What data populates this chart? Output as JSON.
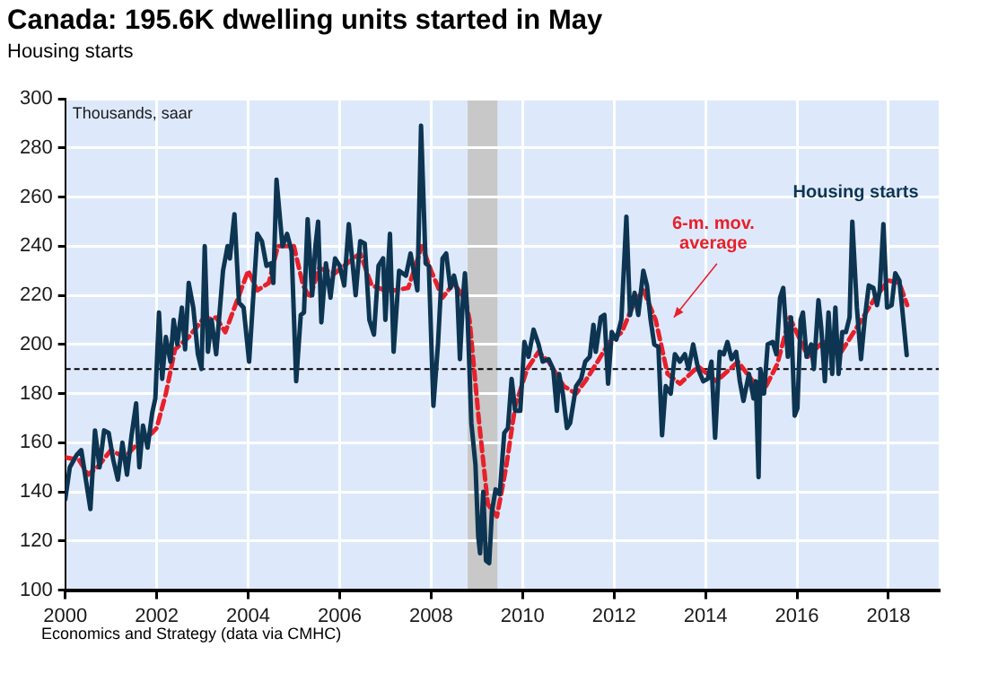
{
  "chart_data": {
    "type": "line",
    "title": "Canada: 195.6K dwelling units started in May",
    "subtitle": "Housing starts",
    "ylabel": "Thousands, saar",
    "annotations": [
      "Economics and Strategy (data via CMHC)"
    ],
    "xlim": [
      2000,
      2019.1
    ],
    "xticks": [
      2000,
      2002,
      2004,
      2006,
      2008,
      2010,
      2012,
      2014,
      2016,
      2018
    ],
    "ylim": [
      100,
      300
    ],
    "yticks": [
      100,
      120,
      140,
      160,
      180,
      200,
      220,
      240,
      260,
      280,
      300
    ],
    "grid": true,
    "legend": false,
    "marker": "none",
    "ref_lines": [
      {
        "axis": "y",
        "value": 190,
        "color": "#000000",
        "line_style": "dashed"
      }
    ],
    "bands": [
      {
        "axis": "x",
        "from": 2008.8,
        "to": 2009.45,
        "color": "#c8c8c8"
      }
    ],
    "series": [
      {
        "name": "Housing starts",
        "color": "#0d3552",
        "line_style": "solid",
        "x": [
          2000.0,
          2000.1,
          2000.25,
          2000.35,
          2000.45,
          2000.55,
          2000.65,
          2000.75,
          2000.85,
          2000.95,
          2001.05,
          2001.15,
          2001.25,
          2001.35,
          2001.45,
          2001.55,
          2001.62,
          2001.7,
          2001.8,
          2001.9,
          2001.97,
          2002.05,
          2002.12,
          2002.2,
          2002.3,
          2002.37,
          2002.45,
          2002.55,
          2002.62,
          2002.7,
          2002.8,
          2002.9,
          2002.98,
          2003.05,
          2003.12,
          2003.2,
          2003.3,
          2003.45,
          2003.55,
          2003.6,
          2003.7,
          2003.8,
          2003.9,
          2004.02,
          2004.2,
          2004.3,
          2004.4,
          2004.5,
          2004.55,
          2004.62,
          2004.75,
          2004.85,
          2004.95,
          2005.05,
          2005.15,
          2005.22,
          2005.3,
          2005.4,
          2005.47,
          2005.53,
          2005.6,
          2005.7,
          2005.8,
          2005.9,
          2006.0,
          2006.1,
          2006.2,
          2006.35,
          2006.45,
          2006.55,
          2006.65,
          2006.75,
          2006.85,
          2006.95,
          2007.0,
          2007.1,
          2007.18,
          2007.3,
          2007.45,
          2007.55,
          2007.62,
          2007.7,
          2007.78,
          2007.88,
          2007.95,
          2008.05,
          2008.15,
          2008.25,
          2008.33,
          2008.42,
          2008.5,
          2008.57,
          2008.63,
          2008.7,
          2008.74,
          2008.8,
          2008.88,
          2008.97,
          2009.03,
          2009.07,
          2009.14,
          2009.2,
          2009.27,
          2009.33,
          2009.41,
          2009.5,
          2009.6,
          2009.68,
          2009.76,
          2009.84,
          2009.95,
          2010.04,
          2010.13,
          2010.24,
          2010.35,
          2010.44,
          2010.57,
          2010.67,
          2010.75,
          2010.8,
          2010.88,
          2010.97,
          2011.04,
          2011.17,
          2011.28,
          2011.37,
          2011.47,
          2011.55,
          2011.6,
          2011.71,
          2011.79,
          2011.87,
          2011.95,
          2012.05,
          2012.16,
          2012.27,
          2012.35,
          2012.45,
          2012.53,
          2012.64,
          2012.72,
          2012.8,
          2012.88,
          2012.97,
          2013.05,
          2013.13,
          2013.24,
          2013.33,
          2013.44,
          2013.55,
          2013.63,
          2013.73,
          2013.84,
          2013.95,
          2014.05,
          2014.13,
          2014.21,
          2014.31,
          2014.4,
          2014.48,
          2014.57,
          2014.67,
          2014.75,
          2014.83,
          2014.95,
          2015.05,
          2015.1,
          2015.16,
          2015.2,
          2015.28,
          2015.36,
          2015.47,
          2015.55,
          2015.63,
          2015.7,
          2015.8,
          2015.87,
          2015.95,
          2016.01,
          2016.08,
          2016.13,
          2016.21,
          2016.31,
          2016.37,
          2016.47,
          2016.53,
          2016.61,
          2016.69,
          2016.77,
          2016.84,
          2016.91,
          2016.99,
          2017.07,
          2017.15,
          2017.21,
          2017.31,
          2017.4,
          2017.48,
          2017.57,
          2017.67,
          2017.75,
          2017.81,
          2017.89,
          2017.97,
          2018.07,
          2018.15,
          2018.24,
          2018.32,
          2018.4
        ],
        "values": [
          137,
          150,
          155,
          157,
          145,
          133,
          165,
          150,
          165,
          164,
          153,
          145,
          160,
          147,
          163,
          176,
          150,
          167,
          158,
          172,
          178,
          213,
          186,
          203,
          193,
          210,
          200,
          215,
          198,
          225,
          215,
          196,
          190,
          240,
          197,
          210,
          196,
          230,
          240,
          235,
          253,
          217,
          215,
          193,
          245,
          242,
          232,
          233,
          225,
          267,
          240,
          245,
          238,
          185,
          212,
          213,
          251,
          220,
          240,
          250,
          209,
          233,
          219,
          235,
          232,
          224,
          249,
          220,
          242,
          241,
          210,
          204,
          232,
          235,
          210,
          245,
          197,
          230,
          228,
          237,
          230,
          222,
          289,
          233,
          232,
          175,
          200,
          235,
          237,
          223,
          228,
          222,
          194,
          220,
          229,
          210,
          168,
          151,
          122,
          115,
          140,
          112,
          111,
          132,
          141,
          139,
          164,
          166,
          186,
          173,
          173,
          201,
          195,
          206,
          200,
          193,
          194,
          190,
          173,
          188,
          180,
          166,
          168,
          183,
          186,
          193,
          195,
          208,
          197,
          211,
          212,
          184,
          205,
          202,
          210,
          252,
          212,
          221,
          212,
          230,
          224,
          210,
          200,
          199,
          163,
          183,
          180,
          196,
          193,
          196,
          190,
          200,
          190,
          185,
          186,
          193,
          162,
          197,
          196,
          201,
          194,
          197,
          185,
          177,
          188,
          178,
          185,
          146,
          190,
          180,
          200,
          201,
          196,
          219,
          223,
          195,
          211,
          171,
          174,
          210,
          213,
          195,
          200,
          190,
          218,
          207,
          185,
          213,
          188,
          215,
          188,
          205,
          205,
          211,
          250,
          215,
          194,
          210,
          224,
          223,
          216,
          222,
          249,
          215,
          216,
          229,
          226,
          211,
          195.6
        ]
      },
      {
        "name": "6-m. mov. average",
        "color": "#e8202a",
        "line_style": "dashed",
        "x": [
          2000.0,
          2000.3,
          2000.5,
          2000.7,
          2001.0,
          2001.3,
          2001.6,
          2001.9,
          2002.0,
          2002.2,
          2002.4,
          2002.7,
          2003.0,
          2003.3,
          2003.5,
          2003.8,
          2004.0,
          2004.2,
          2004.45,
          2004.65,
          2005.0,
          2005.2,
          2005.35,
          2005.55,
          2005.9,
          2006.1,
          2006.3,
          2006.45,
          2006.7,
          2007.0,
          2007.2,
          2007.5,
          2007.8,
          2008.0,
          2008.25,
          2008.5,
          2008.75,
          2008.84,
          2009.04,
          2009.24,
          2009.44,
          2009.64,
          2009.84,
          2010.1,
          2010.35,
          2010.57,
          2010.9,
          2011.17,
          2011.37,
          2011.64,
          2011.9,
          2012.17,
          2012.44,
          2012.64,
          2012.91,
          2013.17,
          2013.44,
          2013.84,
          2014.24,
          2014.71,
          2015.24,
          2015.57,
          2015.84,
          2016.24,
          2016.57,
          2016.97,
          2017.31,
          2017.71,
          2018.0,
          2018.24,
          2018.41
        ],
        "values": [
          154,
          153,
          147,
          150,
          157,
          154,
          160,
          164,
          166,
          180,
          198,
          203,
          210,
          211,
          205,
          220,
          230,
          222,
          225,
          240,
          240,
          224,
          219,
          231,
          229,
          232,
          235,
          237,
          224,
          222,
          222,
          223,
          240,
          230,
          219,
          225,
          218,
          210,
          170,
          135,
          130,
          150,
          175,
          190,
          197,
          193,
          183,
          180,
          185,
          193,
          201,
          205,
          217,
          222,
          210,
          188,
          184,
          191,
          185,
          193,
          180,
          192,
          211,
          195,
          201,
          197,
          207,
          219,
          226,
          225,
          216
        ]
      }
    ]
  }
}
